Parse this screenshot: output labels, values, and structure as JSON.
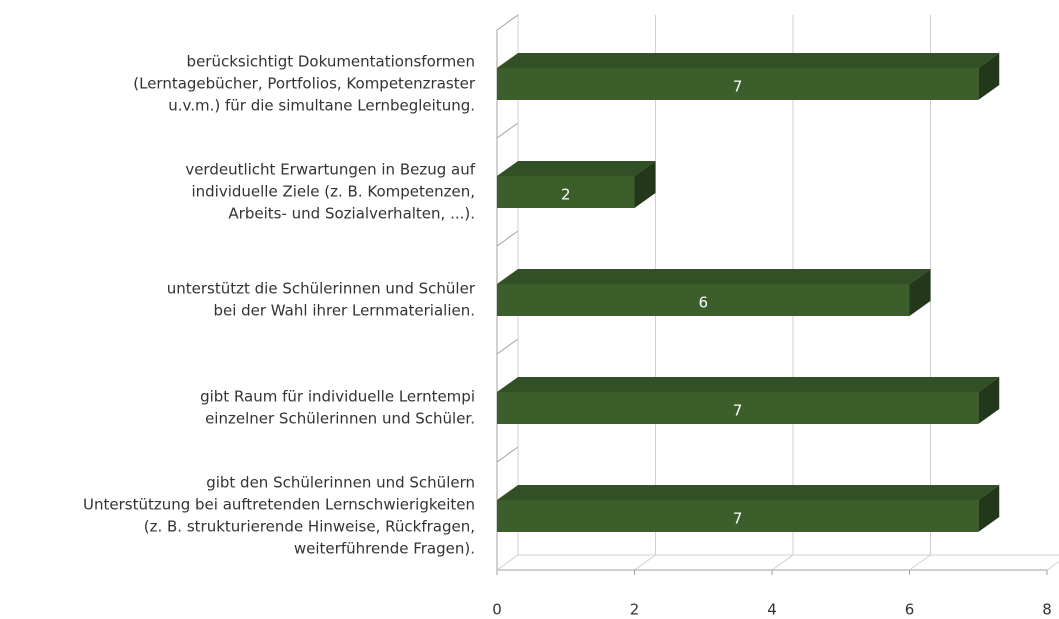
{
  "chart_data": {
    "type": "bar3d_horizontal",
    "categories": [
      [
        "berücksichtigt Dokumentationsformen",
        "(Lerntagebücher, Portfolios, Kompetenzraster",
        "u.v.m.) für die simultane Lernbegleitung."
      ],
      [
        "verdeutlicht Erwartungen in Bezug auf",
        "individuelle Ziele (z. B. Kompetenzen,",
        "Arbeits- und Sozialverhalten, ...)."
      ],
      [
        "unterstützt die Schülerinnen und Schüler",
        "bei der Wahl ihrer Lernmaterialien."
      ],
      [
        "gibt Raum für individuelle Lerntempi",
        "einzelner Schülerinnen und Schüler."
      ],
      [
        "gibt den Schülerinnen und Schülern",
        "Unterstützung bei auftretenden Lernschwierigkeiten",
        "(z. B. strukturierende Hinweise, Rückfragen,",
        "weiterführende Fragen)."
      ]
    ],
    "values": [
      7,
      2,
      6,
      7,
      7
    ],
    "color": "#3b5e2b",
    "xlim": [
      0,
      8
    ],
    "xticks": [
      0,
      2,
      4,
      6,
      8
    ],
    "grid": true
  }
}
